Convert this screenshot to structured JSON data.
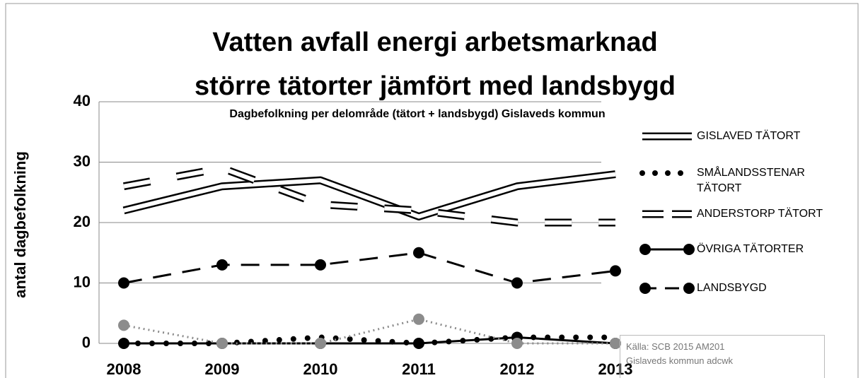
{
  "chart_data": {
    "type": "line",
    "title": [
      "Vatten avfall energi arbetsmarknad",
      "större tätorter jämfört med landsbygd"
    ],
    "subtitle": "Dagbefolkning per delområde (tätort + landsbygd) Gislaveds kommun",
    "y_label": "antal dagbefolkning",
    "categories": [
      "2008",
      "2009",
      "2010",
      "2011",
      "2012",
      "2013"
    ],
    "ylim": [
      0,
      40
    ],
    "yticks": [
      0,
      10,
      20,
      30,
      40
    ],
    "grid": true,
    "series": [
      {
        "name": "GISLAVED TÄTORT",
        "color": "#000000",
        "style": "double",
        "values": [
          22,
          26,
          27,
          21,
          26,
          28
        ]
      },
      {
        "name": "SMÅLANDSSTENAR TÄTORT",
        "color": "#000000",
        "style": "dots",
        "values": [
          0,
          0,
          1,
          0,
          1,
          1
        ]
      },
      {
        "name": "ANDERSTORP TÄTORT",
        "color": "#000000",
        "style": "double-dash",
        "values": [
          26,
          29,
          23,
          22,
          20,
          20
        ]
      },
      {
        "name": "ÖVRIGA TÄTORTER",
        "color": "#000000",
        "style": "solid",
        "marker": true,
        "values": [
          0,
          0,
          0,
          0,
          1,
          0
        ]
      },
      {
        "name": "LANDSBYGD",
        "color": "#000000",
        "style": "dash",
        "marker": true,
        "values": [
          10,
          13,
          13,
          15,
          10,
          12
        ]
      },
      {
        "color": "#8c8c8c",
        "style": "dotted",
        "marker": true,
        "values": [
          3,
          0,
          0,
          4,
          0,
          0
        ]
      }
    ],
    "source": [
      "Källa: SCB 2015 AM201",
      "Gislaveds kommun adcwk"
    ]
  }
}
